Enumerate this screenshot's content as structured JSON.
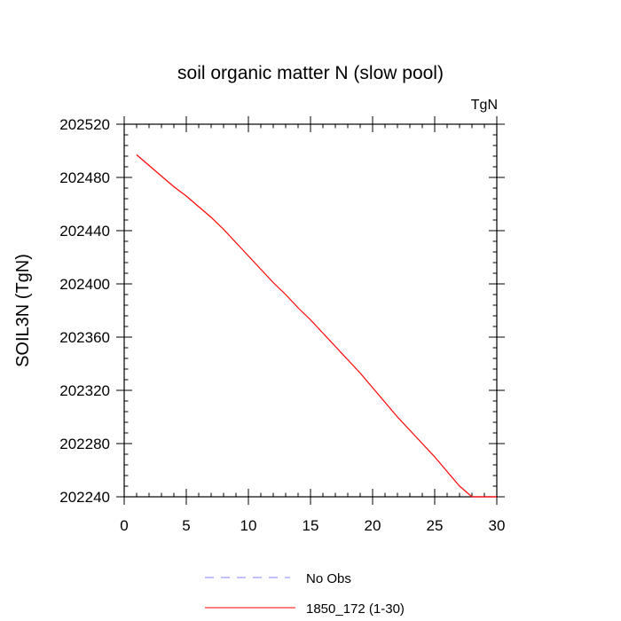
{
  "chart_data": {
    "type": "line",
    "title": "soil organic matter N (slow pool)",
    "units_label": "TgN",
    "xlabel": "",
    "ylabel": "SOIL3N  (TgN)",
    "xlim": [
      0,
      30
    ],
    "ylim": [
      202240,
      202520
    ],
    "x_ticks": [
      0,
      5,
      10,
      15,
      20,
      25,
      30
    ],
    "y_ticks": [
      202240,
      202280,
      202320,
      202360,
      202400,
      202440,
      202480,
      202520
    ],
    "grid": false,
    "legend_position": "bottom",
    "series": [
      {
        "name": "No Obs",
        "style": "dashed",
        "color": "#8080ff",
        "x": [],
        "y": []
      },
      {
        "name": "1850_172 (1-30)",
        "style": "solid",
        "color": "#ff0000",
        "x": [
          1,
          2,
          3,
          4,
          5,
          6,
          7,
          8,
          9,
          10,
          11,
          12,
          13,
          14,
          15,
          16,
          17,
          18,
          19,
          20,
          21,
          22,
          23,
          24,
          25,
          26,
          27,
          28,
          29,
          30
        ],
        "y": [
          202497,
          202489,
          202481,
          202473,
          202466,
          202458,
          202450,
          202441,
          202431,
          202421,
          202411,
          202401,
          202392,
          202382,
          202373,
          202363,
          202353,
          202343,
          202333,
          202322,
          202311,
          202300,
          202290,
          202280,
          202270,
          202259,
          202248,
          202237,
          202226,
          202215
        ]
      }
    ]
  }
}
